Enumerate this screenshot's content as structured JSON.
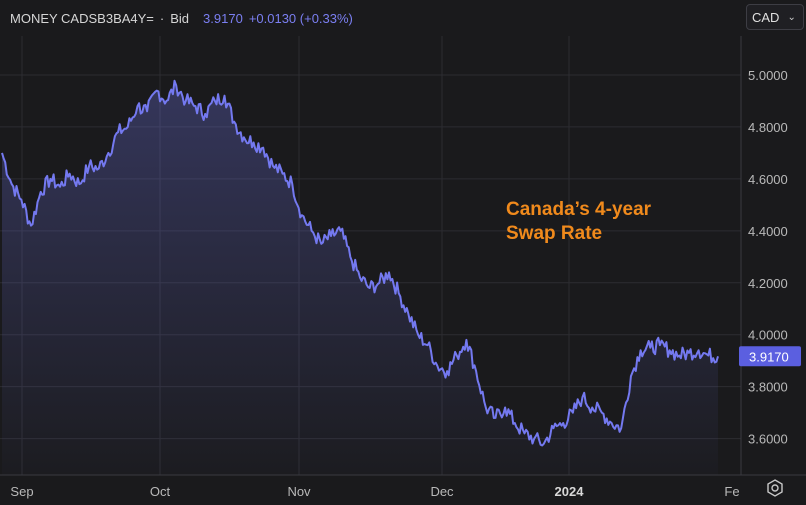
{
  "header": {
    "symbol": "MONEY CADSB3BA4Y=",
    "dot": "·",
    "field": "Bid",
    "last": "3.9170",
    "change": "+0.0130 (+0.33%)"
  },
  "currency": {
    "selected": "CAD"
  },
  "colors": {
    "line": "#7479f0",
    "annotation": "#f08a1c",
    "price_tag": "#5b5fe0",
    "background": "#1a1a1c",
    "grid": "#2c2c31"
  },
  "chart_data": {
    "type": "line",
    "title": "",
    "annotation": [
      "Canada’s 4-year",
      "Swap Rate"
    ],
    "ylim": [
      3.46,
      5.15
    ],
    "y_ticks": [
      "5.0000",
      "4.8000",
      "4.6000",
      "4.4000",
      "4.2000",
      "4.0000",
      "3.8000",
      "3.6000"
    ],
    "x_ticks": [
      "Sep",
      "Oct",
      "Nov",
      "Dec",
      "2024",
      "Fe"
    ],
    "x_tick_bold": "2024",
    "last_value_label": "3.9170",
    "series": [
      {
        "values": [
          4.7,
          4.58,
          4.52,
          4.42,
          4.55,
          4.6,
          4.57,
          4.62,
          4.58,
          4.65,
          4.64,
          4.7,
          4.78,
          4.8,
          4.88,
          4.86,
          4.94,
          4.9,
          4.96,
          4.9,
          4.88,
          4.85,
          4.9,
          4.92,
          4.82,
          4.76,
          4.74,
          4.72,
          4.65,
          4.62,
          4.58,
          4.46,
          4.4,
          4.35,
          4.38,
          4.4,
          4.3,
          4.22,
          4.18,
          4.2,
          4.24,
          4.16,
          4.08,
          4.0,
          3.96,
          3.88,
          3.86,
          3.92,
          3.98,
          3.86,
          3.72,
          3.68,
          3.72,
          3.66,
          3.62,
          3.6,
          3.58,
          3.64,
          3.66,
          3.7,
          3.76,
          3.72,
          3.7,
          3.66,
          3.64,
          3.84,
          3.94,
          3.95,
          3.96,
          3.94,
          3.92,
          3.93,
          3.94,
          3.92,
          3.917
        ]
      }
    ]
  }
}
